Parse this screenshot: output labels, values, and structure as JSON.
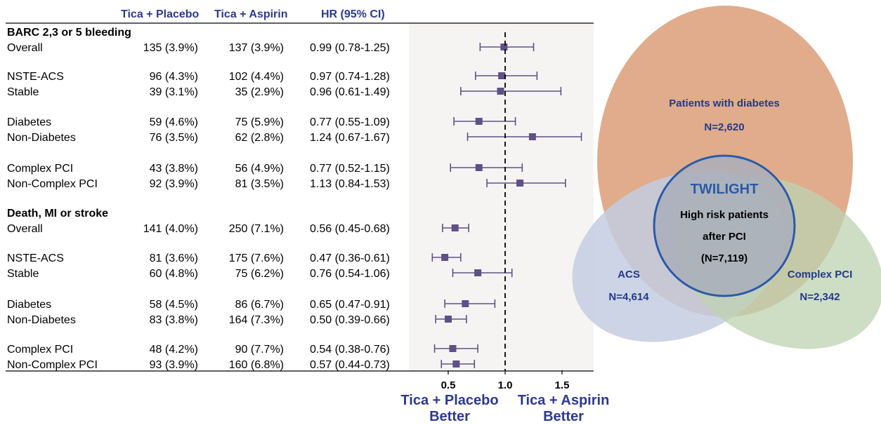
{
  "columns": {
    "placebo": "Tica + Placebo",
    "aspirin": "Tica + Aspirin",
    "hr": "HR (95% CI)"
  },
  "favors": {
    "left_line1": "Tica + Placebo",
    "left_line2": "Better",
    "right_line1": "Tica + Aspirin",
    "right_line2": "Better"
  },
  "colors": {
    "accent": "#2b3990",
    "marker": "#5e5187",
    "diabetes_ellipse": "#dca07c",
    "acs_ellipse": "#c3cde0",
    "complex_ellipse": "#bdd3b2",
    "circle_stroke": "#2b5aa8"
  },
  "chart_data": {
    "type": "forest",
    "x_axis": {
      "ticks": [
        0.5,
        1.0,
        1.5
      ],
      "tick_labels": [
        "0.5",
        "1.0",
        "1.5"
      ],
      "range": [
        0.35,
        1.75
      ],
      "reference_line": 1.0
    },
    "sections": [
      {
        "title": "BARC 2,3 or 5 bleeding",
        "rows": [
          {
            "label": "Overall",
            "placebo": "135 (3.9%)",
            "aspirin": "137 (3.9%)",
            "hr_text": "0.99 (0.78-1.25)",
            "hr": 0.99,
            "lo": 0.78,
            "hi": 1.25
          },
          {
            "label": "NSTE-ACS",
            "placebo": "96 (4.3%)",
            "aspirin": "102 (4.4%)",
            "hr_text": "0.97 (0.74-1.28)",
            "hr": 0.97,
            "lo": 0.74,
            "hi": 1.28
          },
          {
            "label": "Stable",
            "placebo": "39 (3.1%)",
            "aspirin": "35 (2.9%)",
            "hr_text": "0.96 (0.61-1.49)",
            "hr": 0.96,
            "lo": 0.61,
            "hi": 1.49
          },
          {
            "label": "Diabetes",
            "placebo": "59 (4.6%)",
            "aspirin": "75 (5.9%)",
            "hr_text": "0.77 (0.55-1.09)",
            "hr": 0.77,
            "lo": 0.55,
            "hi": 1.09
          },
          {
            "label": "Non-Diabetes",
            "placebo": "76 (3.5%)",
            "aspirin": "62 (2.8%)",
            "hr_text": "1.24 (0.67-1.67)",
            "hr": 1.24,
            "lo": 0.67,
            "hi": 1.67
          },
          {
            "label": "Complex PCI",
            "placebo": "43 (3.8%)",
            "aspirin": "56 (4.9%)",
            "hr_text": "0.77 (0.52-1.15)",
            "hr": 0.77,
            "lo": 0.52,
            "hi": 1.15
          },
          {
            "label": "Non-Complex PCI",
            "placebo": "92 (3.9%)",
            "aspirin": "81 (3.5%)",
            "hr_text": "1.13 (0.84-1.53)",
            "hr": 1.13,
            "lo": 0.84,
            "hi": 1.53
          }
        ]
      },
      {
        "title": "Death, MI or stroke",
        "rows": [
          {
            "label": "Overall",
            "placebo": "141 (4.0%)",
            "aspirin": "250 (7.1%)",
            "hr_text": "0.56 (0.45-0.68)",
            "hr": 0.56,
            "lo": 0.45,
            "hi": 0.68
          },
          {
            "label": "NSTE-ACS",
            "placebo": "81 (3.6%)",
            "aspirin": "175 (7.6%)",
            "hr_text": "0.47 (0.36-0.61)",
            "hr": 0.47,
            "lo": 0.36,
            "hi": 0.61
          },
          {
            "label": "Stable",
            "placebo": "60 (4.8%)",
            "aspirin": "75 (6.2%)",
            "hr_text": "0.76 (0.54-1.06)",
            "hr": 0.76,
            "lo": 0.54,
            "hi": 1.06
          },
          {
            "label": "Diabetes",
            "placebo": "58 (4.5%)",
            "aspirin": "86 (6.7%)",
            "hr_text": "0.65 (0.47-0.91)",
            "hr": 0.65,
            "lo": 0.47,
            "hi": 0.91
          },
          {
            "label": "Non-Diabetes",
            "placebo": "83 (3.8%)",
            "aspirin": "164 (7.3%)",
            "hr_text": "0.50 (0.39-0.66)",
            "hr": 0.5,
            "lo": 0.39,
            "hi": 0.66
          },
          {
            "label": "Complex PCI",
            "placebo": "48 (4.2%)",
            "aspirin": "90 (7.7%)",
            "hr_text": "0.54 (0.38-0.76)",
            "hr": 0.54,
            "lo": 0.38,
            "hi": 0.76
          },
          {
            "label": "Non-Complex PCI",
            "placebo": "93 (3.9%)",
            "aspirin": "160 (6.8%)",
            "hr_text": "0.57 (0.44-0.73)",
            "hr": 0.57,
            "lo": 0.44,
            "hi": 0.73
          }
        ]
      }
    ]
  },
  "venn": {
    "center_title": "TWILIGHT",
    "center_line1": "High risk patients",
    "center_line2": "after PCI",
    "center_line3": "(N=7,119)",
    "diabetes_label": "Patients with diabetes",
    "diabetes_n": "N=2,620",
    "acs_label": "ACS",
    "acs_n": "N=4,614",
    "complex_label": "Complex PCI",
    "complex_n": "N=2,342"
  }
}
